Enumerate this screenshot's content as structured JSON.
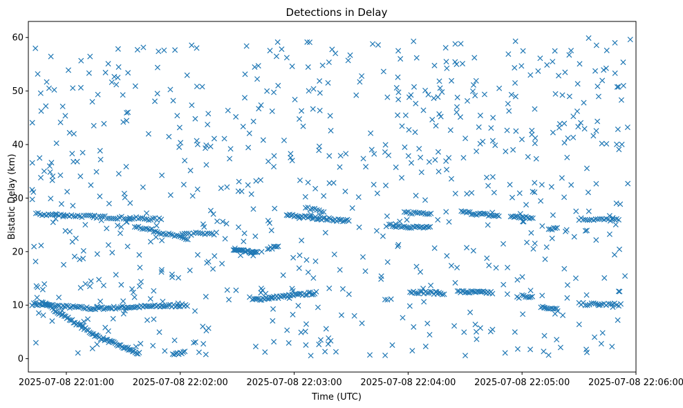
{
  "chart_data": {
    "type": "scatter",
    "title": "Detections in Delay",
    "xlabel": "Time (UTC)",
    "ylabel": "Bistatic Delay (km)",
    "x_unit": "seconds after 2025-07-08 22:00:00 UTC",
    "xlim": [
      40,
      360
    ],
    "ylim": [
      -2.5,
      63
    ],
    "marker": "x",
    "color": "#1f77b4",
    "grid": false,
    "x_ticks": [
      {
        "value": 60,
        "label": "2025-07-08 22:01:00"
      },
      {
        "value": 120,
        "label": "2025-07-08 22:02:00"
      },
      {
        "value": 180,
        "label": "2025-07-08 22:03:00"
      },
      {
        "value": 240,
        "label": "2025-07-08 22:04:00"
      },
      {
        "value": 300,
        "label": "2025-07-08 22:05:00"
      },
      {
        "value": 360,
        "label": "2025-07-08 22:06:00"
      }
    ],
    "y_ticks": [
      {
        "value": 0,
        "label": "0"
      },
      {
        "value": 10,
        "label": "10"
      },
      {
        "value": 20,
        "label": "20"
      },
      {
        "value": 30,
        "label": "30"
      },
      {
        "value": 40,
        "label": "40"
      },
      {
        "value": 50,
        "label": "50"
      },
      {
        "value": 60,
        "label": "60"
      }
    ],
    "tracks": [
      {
        "t_start": 42,
        "t_end": 76,
        "y_start": 10.2,
        "y_end": 9.3,
        "step": 0.9
      },
      {
        "t_start": 76,
        "t_end": 124,
        "y_start": 9.4,
        "y_end": 10.0,
        "step": 0.9
      },
      {
        "t_start": 47,
        "t_end": 76,
        "y_start": 10.6,
        "y_end": 4.2,
        "step": 0.7
      },
      {
        "t_start": 76,
        "t_end": 99,
        "y_start": 4.2,
        "y_end": 0.8,
        "step": 0.7
      },
      {
        "t_start": 116,
        "t_end": 123,
        "y_start": 0.6,
        "y_end": 1.4,
        "step": 0.8
      },
      {
        "t_start": 44,
        "t_end": 110,
        "y_start": 27.0,
        "y_end": 26.0,
        "step": 1.1
      },
      {
        "t_start": 96,
        "t_end": 124,
        "y_start": 24.8,
        "y_end": 22.3,
        "step": 1.0
      },
      {
        "t_start": 148,
        "t_end": 161,
        "y_start": 20.3,
        "y_end": 19.7,
        "step": 0.6
      },
      {
        "t_start": 166,
        "t_end": 172,
        "y_start": 20.6,
        "y_end": 20.9,
        "step": 0.8
      },
      {
        "t_start": 176,
        "t_end": 209,
        "y_start": 26.8,
        "y_end": 25.7,
        "step": 0.8
      },
      {
        "t_start": 158,
        "t_end": 192,
        "y_start": 11.0,
        "y_end": 12.3,
        "step": 0.8
      },
      {
        "t_start": 230,
        "t_end": 252,
        "y_start": 24.9,
        "y_end": 24.4,
        "step": 0.9
      },
      {
        "t_start": 238,
        "t_end": 252,
        "y_start": 27.3,
        "y_end": 27.2,
        "step": 1.0
      },
      {
        "t_start": 241,
        "t_end": 259,
        "y_start": 12.5,
        "y_end": 12.2,
        "step": 0.9
      },
      {
        "t_start": 266,
        "t_end": 285,
        "y_start": 12.5,
        "y_end": 12.3,
        "step": 0.8
      },
      {
        "t_start": 268,
        "t_end": 288,
        "y_start": 27.4,
        "y_end": 26.6,
        "step": 0.9
      },
      {
        "t_start": 294,
        "t_end": 306,
        "y_start": 26.6,
        "y_end": 26.2,
        "step": 0.9
      },
      {
        "t_start": 300,
        "t_end": 306,
        "y_start": 11.8,
        "y_end": 11.5,
        "step": 0.9
      },
      {
        "t_start": 312,
        "t_end": 319,
        "y_start": 9.3,
        "y_end": 9.6,
        "step": 0.9
      },
      {
        "t_start": 314,
        "t_end": 319,
        "y_start": 24.2,
        "y_end": 24.5,
        "step": 0.9
      },
      {
        "t_start": 330,
        "t_end": 351,
        "y_start": 26.1,
        "y_end": 25.9,
        "step": 1.1
      },
      {
        "t_start": 330,
        "t_end": 352,
        "y_start": 10.2,
        "y_end": 10.1,
        "step": 1.1
      },
      {
        "t_start": 121,
        "t_end": 140,
        "y_start": 23.3,
        "y_end": 23.4,
        "step": 1.2
      },
      {
        "t_start": 186,
        "t_end": 196,
        "y_start": 28.1,
        "y_end": 27.5,
        "step": 1.2
      }
    ],
    "clutter": {
      "count": 720,
      "t_range": [
        42,
        357
      ],
      "y_range": [
        0.5,
        60
      ],
      "seed": 7
    }
  }
}
